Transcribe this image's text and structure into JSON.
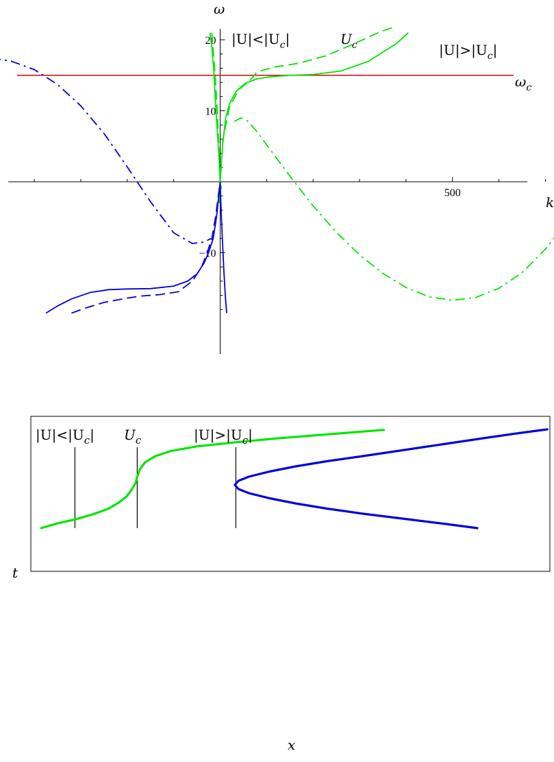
{
  "chart_data": [
    {
      "type": "line",
      "title": "",
      "xlabel": "k",
      "ylabel": "ω",
      "xlim": [
        -690,
        1040
      ],
      "ylim": [
        -18.5,
        21.5
      ],
      "xticks": [
        -500,
        500,
        1000
      ],
      "yticks": [
        -10,
        10,
        20
      ],
      "hline": {
        "y": 15,
        "label": "ω",
        "label_sub": "c",
        "color": "#e00000"
      },
      "annotations": [
        {
          "text": "|U|<|U",
          "sub": "c",
          "close": "|"
        },
        {
          "text": "U",
          "sub": "c",
          "close": ""
        },
        {
          "text": "|U|>|U",
          "sub": "c",
          "close": "|"
        }
      ],
      "series": [
        {
          "role": "green-solid",
          "color": "#00e600",
          "style": "solid",
          "x": [
            -2,
            0,
            5,
            12,
            20,
            35,
            55,
            80,
            110,
            150,
            200,
            260,
            320,
            380,
            405
          ],
          "y": [
            -3,
            0,
            5,
            9,
            11,
            12.8,
            13.9,
            14.5,
            14.8,
            15,
            15.1,
            15.6,
            17,
            19.5,
            21
          ]
        },
        {
          "role": "green-solid-steep",
          "color": "#00e600",
          "style": "solid",
          "x": [
            -22,
            -18,
            -14,
            -10,
            -6,
            -2,
            0,
            1,
            3
          ],
          "y": [
            21,
            19,
            16,
            11,
            7,
            3,
            0,
            -0.5,
            -1
          ]
        },
        {
          "role": "green-dashed",
          "color": "#00e600",
          "style": "dashed",
          "x": [
            -18,
            -12,
            -6,
            0,
            6,
            20,
            40,
            60,
            80,
            120,
            170,
            230,
            290,
            340,
            370
          ],
          "y": [
            21,
            16,
            10,
            0,
            6,
            10.5,
            13,
            14,
            15.5,
            16.2,
            16.7,
            17.8,
            19.5,
            21,
            21.7
          ]
        },
        {
          "role": "green-dashdot",
          "color": "#00e600",
          "style": "dashdot",
          "x": [
            30,
            45,
            60,
            80,
            100,
            150,
            200,
            250,
            300,
            350,
            400,
            450,
            500,
            550,
            600,
            650,
            700,
            750,
            800,
            850,
            900,
            950,
            1000,
            1030
          ],
          "y": [
            8.5,
            9,
            8.5,
            7,
            5.2,
            0.8,
            -3.4,
            -7.1,
            -10.3,
            -12.9,
            -14.9,
            -16.2,
            -16.7,
            -16.3,
            -15,
            -12.8,
            -9.5,
            -5.3,
            -0.3,
            5.4,
            11.2,
            17,
            21.5,
            22.5
          ]
        },
        {
          "role": "blue-solid",
          "color": "#0000dd",
          "style": "solid",
          "x": [
            -375,
            -350,
            -320,
            -280,
            -240,
            -200,
            -150,
            -100,
            -70,
            -50,
            -35,
            -25,
            -15,
            -8,
            -3,
            0
          ],
          "y": [
            -18.5,
            -17.5,
            -16.5,
            -15.6,
            -15.2,
            -15.1,
            -15.05,
            -14.7,
            -14,
            -13,
            -11.5,
            -10,
            -8,
            -5,
            -2,
            0
          ]
        },
        {
          "role": "blue-solid-steep",
          "color": "#0000dd",
          "style": "solid",
          "x": [
            0,
            2,
            5,
            8,
            11,
            14
          ],
          "y": [
            0,
            -4,
            -8.5,
            -12.5,
            -16,
            -18.5
          ]
        },
        {
          "role": "blue-dashed",
          "color": "#0000dd",
          "style": "dashed",
          "x": [
            -320,
            -290,
            -250,
            -200,
            -170,
            -130,
            -90,
            -60,
            -40,
            -28,
            -18,
            -10,
            -4,
            0
          ],
          "y": [
            -18.5,
            -17.8,
            -17,
            -16.4,
            -16.1,
            -15.9,
            -15.5,
            -14,
            -12,
            -10,
            -8,
            -5,
            -2,
            0
          ]
        },
        {
          "role": "blue-dashdot",
          "color": "#0000dd",
          "style": "dashdot",
          "x": [
            -690,
            -650,
            -600,
            -550,
            -500,
            -450,
            -400,
            -350,
            -300,
            -250,
            -200,
            -150,
            -100,
            -60,
            -35,
            -20
          ],
          "y": [
            13.2,
            15.2,
            16.6,
            17.4,
            17.5,
            17.0,
            15.8,
            13.7,
            10.7,
            6.8,
            2.1,
            -2.8,
            -7.2,
            -8.7,
            -8.5,
            -8
          ]
        }
      ]
    },
    {
      "type": "line",
      "title": "",
      "xlabel": "x",
      "ylabel": "t",
      "xlim": [
        0,
        100
      ],
      "ylim": [
        0,
        100
      ],
      "vlines": [
        {
          "x": 8.5,
          "label": "|U|<|U",
          "label_sub": "c",
          "label_close": "|"
        },
        {
          "x": 20.5,
          "label": "U",
          "label_sub": "c",
          "label_close": ""
        },
        {
          "x": 39.5,
          "label": "|U|>|U",
          "label_sub": "c",
          "label_close": "|"
        }
      ],
      "series": [
        {
          "role": "green",
          "color": "#00e600",
          "x": [
            2,
            5,
            8.5,
            12,
            15,
            17,
            18.5,
            19.5,
            20.2,
            20.5,
            21,
            22,
            24,
            27,
            32,
            39.5,
            48,
            58,
            68
          ],
          "y": [
            0,
            4.5,
            8.5,
            13.5,
            19,
            25,
            31,
            38,
            44,
            50,
            57,
            64,
            70,
            75,
            79.5,
            83.5,
            87.5,
            91.5,
            95.5
          ]
        },
        {
          "role": "blue",
          "color": "#0000dd",
          "x": [
            86,
            80,
            72,
            64,
            57,
            51,
            46,
            42,
            40,
            39.3,
            40,
            42,
            46,
            51,
            57,
            64,
            72,
            80,
            88,
            95,
            99.5
          ],
          "y": [
            0,
            4,
            9,
            14,
            19,
            24,
            29,
            34,
            38,
            42,
            46,
            50,
            55,
            60,
            65,
            70,
            76,
            82,
            88,
            93,
            96
          ]
        }
      ]
    }
  ]
}
